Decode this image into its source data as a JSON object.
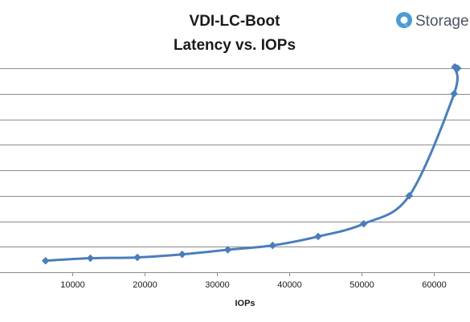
{
  "brand": {
    "name": "Storage",
    "icon": "storage-review-logo-icon",
    "color": "#4a9bd6",
    "text_color": "#4a5563"
  },
  "chart_data": {
    "type": "line",
    "title": [
      "VDI-LC-Boot",
      "Latency vs. IOPs"
    ],
    "xlabel": "IOPs",
    "ylabel": "",
    "xlim": [
      0,
      65000
    ],
    "ylim": [
      0,
      8
    ],
    "x_ticks": [
      10000,
      20000,
      30000,
      40000,
      50000,
      60000
    ],
    "y_gridlines": [
      0,
      1,
      2,
      3,
      4,
      5,
      6,
      7,
      8
    ],
    "y_tick_labels_visible": false,
    "grid": true,
    "legend": "none",
    "series": [
      {
        "color": "#4a7ebb",
        "marker": "diamond",
        "smooth": true,
        "x": [
          6300,
          12500,
          19000,
          25200,
          31500,
          37700,
          44000,
          50300,
          56600,
          62800,
          62900,
          63300
        ],
        "y": [
          0.45,
          0.55,
          0.58,
          0.7,
          0.88,
          1.05,
          1.4,
          1.9,
          3.0,
          7.0,
          8.05,
          8.0
        ]
      }
    ]
  }
}
